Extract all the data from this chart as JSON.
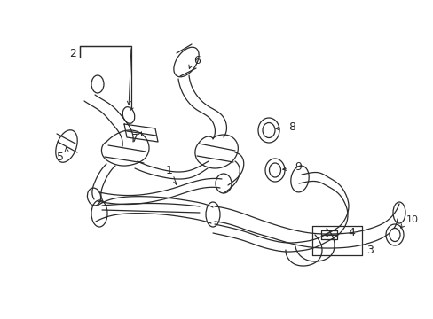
{
  "background_color": "#ffffff",
  "line_color": "#2a2a2a",
  "lw": 0.9,
  "figsize": [
    4.89,
    3.6
  ],
  "dpi": 100,
  "xlim": [
    0,
    489
  ],
  "ylim": [
    0,
    360
  ]
}
